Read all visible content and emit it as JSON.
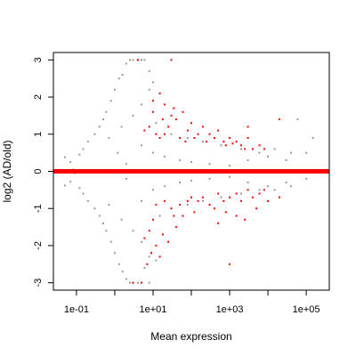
{
  "chart_data": {
    "type": "scatter",
    "title": "",
    "xlabel": "Mean expression",
    "ylabel": "log2 (AD/old)",
    "x_scale": "log10",
    "xlim": [
      0.025,
      400000
    ],
    "ylim": [
      -3.2,
      3.2
    ],
    "x_ticks": [
      {
        "value": 0.1,
        "label": "1e-01"
      },
      {
        "value": 10,
        "label": "1e+01"
      },
      {
        "value": 1000,
        "label": "1e+03"
      },
      {
        "value": 100000,
        "label": "1e+05"
      }
    ],
    "x_minor_ticks": [
      1,
      100,
      10000
    ],
    "y_ticks": [
      {
        "value": -3,
        "label": "-3"
      },
      {
        "value": -2,
        "label": "-2"
      },
      {
        "value": -1,
        "label": "-1"
      },
      {
        "value": 0,
        "label": "0"
      },
      {
        "value": 1,
        "label": "1"
      },
      {
        "value": 2,
        "label": "2"
      },
      {
        "value": 3,
        "label": "3"
      }
    ],
    "reference_line": {
      "y": 0,
      "color": "#ff0000"
    },
    "colors": {
      "not_significant": "#999999",
      "significant": "#ff0000"
    },
    "grid": false,
    "legend": "none",
    "series": [
      {
        "significant": false,
        "points": [
          [
            0.05,
            0.38
          ],
          [
            0.05,
            -0.38
          ],
          [
            0.07,
            0.25
          ],
          [
            0.07,
            -0.28
          ],
          [
            0.08,
            0.05
          ],
          [
            0.09,
            -0.05
          ],
          [
            0.12,
            0.45
          ],
          [
            0.12,
            -0.45
          ],
          [
            0.15,
            0.6
          ],
          [
            0.15,
            -0.6
          ],
          [
            0.2,
            0.8
          ],
          [
            0.2,
            -0.8
          ],
          [
            0.3,
            1.0
          ],
          [
            0.3,
            -1.0
          ],
          [
            0.4,
            1.2
          ],
          [
            0.4,
            -1.2
          ],
          [
            0.5,
            1.4
          ],
          [
            0.5,
            -1.4
          ],
          [
            0.6,
            1.6
          ],
          [
            0.6,
            -1.6
          ],
          [
            0.8,
            1.9
          ],
          [
            0.8,
            -1.9
          ],
          [
            1.0,
            2.2
          ],
          [
            1.0,
            -2.2
          ],
          [
            1.3,
            2.5
          ],
          [
            1.3,
            -2.5
          ],
          [
            1.6,
            2.6
          ],
          [
            1.6,
            -2.7
          ],
          [
            2.0,
            2.9
          ],
          [
            2.0,
            -2.9
          ],
          [
            2.5,
            3.0
          ],
          [
            2.5,
            -3.0
          ],
          [
            3.0,
            3.0
          ],
          [
            3.0,
            -3.0
          ],
          [
            4.0,
            3.0
          ],
          [
            4.0,
            -3.0
          ],
          [
            5.0,
            3.0
          ],
          [
            6.0,
            3.0
          ],
          [
            8.0,
            -3.0
          ],
          [
            1.5,
            1.2
          ],
          [
            1.5,
            -1.3
          ],
          [
            3.0,
            1.5
          ],
          [
            3.0,
            -1.6
          ],
          [
            5.0,
            1.8
          ],
          [
            5.0,
            -1.9
          ],
          [
            8.0,
            2.2
          ],
          [
            8.0,
            -2.3
          ],
          [
            0.7,
            0.9
          ],
          [
            0.7,
            -0.9
          ],
          [
            1.2,
            0.5
          ],
          [
            2.0,
            0.2
          ],
          [
            2.0,
            -0.2
          ],
          [
            5.0,
            0.7
          ],
          [
            5.0,
            -0.8
          ],
          [
            10,
            0.5
          ],
          [
            10,
            -0.5
          ],
          [
            20,
            0.4
          ],
          [
            20,
            -0.4
          ],
          [
            50,
            0.3
          ],
          [
            50,
            -0.3
          ],
          [
            100,
            0.25
          ],
          [
            100,
            -0.25
          ],
          [
            300,
            0.2
          ],
          [
            300,
            -0.2
          ],
          [
            1000,
            0.15
          ],
          [
            1000,
            -0.15
          ],
          [
            3000,
            0.3
          ],
          [
            3000,
            -0.3
          ],
          [
            10000,
            0.4
          ],
          [
            10000,
            -0.4
          ],
          [
            30000,
            0.3
          ],
          [
            30000,
            -0.3
          ],
          [
            100000,
            0.5
          ],
          [
            100000,
            -0.2
          ],
          [
            150000,
            0.9
          ],
          [
            60000,
            1.4
          ],
          [
            12,
            1.3
          ],
          [
            15,
            -1.2
          ],
          [
            30,
            1.0
          ],
          [
            30,
            -1.0
          ],
          [
            80,
            0.9
          ],
          [
            80,
            -0.9
          ],
          [
            200,
            0.8
          ],
          [
            200,
            -0.8
          ],
          [
            600,
            0.7
          ],
          [
            600,
            -0.7
          ],
          [
            2000,
            0.6
          ],
          [
            2000,
            -0.6
          ],
          [
            6000,
            0.5
          ],
          [
            6000,
            -0.5
          ],
          [
            15000,
            0.6
          ],
          [
            15000,
            -0.5
          ],
          [
            40000,
            0.5
          ],
          [
            40000,
            -0.4
          ],
          [
            8,
            2.7
          ],
          [
            10,
            2.4
          ],
          [
            6,
            -2.6
          ],
          [
            12,
            -2.4
          ]
        ]
      },
      {
        "significant": true,
        "points": [
          [
            4,
            3.0
          ],
          [
            30,
            3.0
          ],
          [
            5,
            -3.0
          ],
          [
            3,
            -3.0
          ],
          [
            15,
            2.1
          ],
          [
            20,
            1.8
          ],
          [
            10,
            1.9
          ],
          [
            30,
            1.5
          ],
          [
            8,
            1.2
          ],
          [
            12,
            1.0
          ],
          [
            25,
            1.2
          ],
          [
            40,
            1.4
          ],
          [
            60,
            1.6
          ],
          [
            80,
            1.1
          ],
          [
            100,
            1.3
          ],
          [
            150,
            1.0
          ],
          [
            200,
            1.2
          ],
          [
            300,
            1.0
          ],
          [
            400,
            0.9
          ],
          [
            500,
            1.1
          ],
          [
            700,
            0.8
          ],
          [
            1000,
            0.9
          ],
          [
            1500,
            0.8
          ],
          [
            2000,
            0.7
          ],
          [
            3000,
            0.9
          ],
          [
            4000,
            0.6
          ],
          [
            6000,
            0.7
          ],
          [
            8000,
            0.6
          ],
          [
            15,
            0.9
          ],
          [
            20,
            1.0
          ],
          [
            50,
            0.9
          ],
          [
            70,
            0.8
          ],
          [
            120,
            0.9
          ],
          [
            250,
            0.8
          ],
          [
            800,
            0.7
          ],
          [
            1200,
            0.75
          ],
          [
            2500,
            0.6
          ],
          [
            10,
            1.6
          ],
          [
            18,
            1.4
          ],
          [
            6,
            1.1
          ],
          [
            35,
            1.7
          ],
          [
            20000,
            1.4
          ],
          [
            3000,
            1.2
          ],
          [
            12,
            -0.9
          ],
          [
            20,
            -0.8
          ],
          [
            30,
            -1.0
          ],
          [
            50,
            -0.9
          ],
          [
            80,
            -0.8
          ],
          [
            100,
            -0.7
          ],
          [
            150,
            -0.8
          ],
          [
            200,
            -0.7
          ],
          [
            300,
            -0.9
          ],
          [
            500,
            -0.6
          ],
          [
            700,
            -0.8
          ],
          [
            1000,
            -0.7
          ],
          [
            1500,
            -0.6
          ],
          [
            2000,
            -0.8
          ],
          [
            3000,
            -0.5
          ],
          [
            4000,
            -0.7
          ],
          [
            6000,
            -0.6
          ],
          [
            8000,
            -0.5
          ],
          [
            10,
            -1.3
          ],
          [
            8,
            -1.6
          ],
          [
            6,
            -1.8
          ],
          [
            12,
            -2.0
          ],
          [
            15,
            -2.3
          ],
          [
            25,
            -1.9
          ],
          [
            40,
            -1.5
          ],
          [
            60,
            -1.2
          ],
          [
            120,
            -1.1
          ],
          [
            400,
            -1.0
          ],
          [
            800,
            -1.1
          ],
          [
            1500,
            -1.2
          ],
          [
            2500,
            -1.3
          ],
          [
            5000,
            -1.0
          ],
          [
            1000,
            -2.5
          ],
          [
            500,
            -1.4
          ],
          [
            18,
            -1.7
          ],
          [
            35,
            -1.2
          ],
          [
            9,
            -2.2
          ],
          [
            7,
            -2.5
          ],
          [
            10000,
            -0.8
          ],
          [
            20000,
            -0.7
          ]
        ]
      }
    ]
  }
}
